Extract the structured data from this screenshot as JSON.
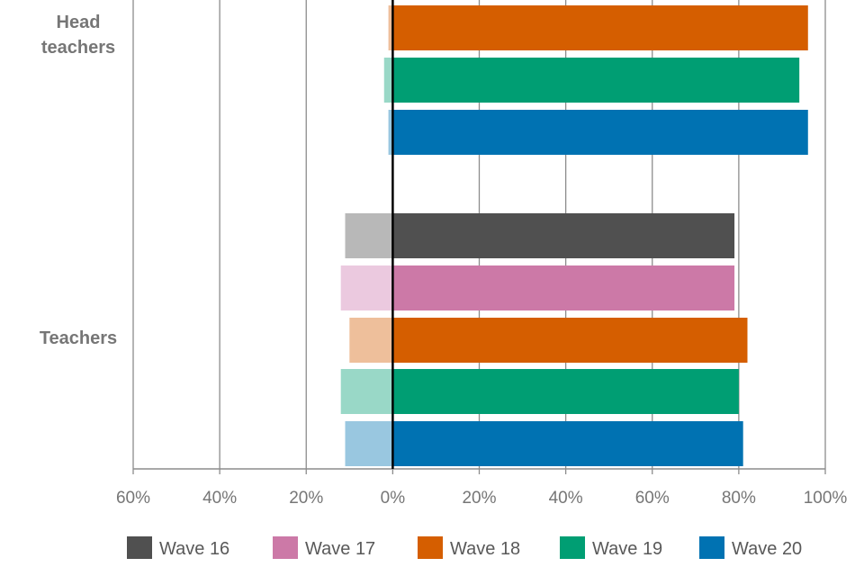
{
  "chart_data": {
    "type": "bar",
    "orientation": "horizontal-diverging",
    "x_ticks": [
      "60%",
      "40%",
      "20%",
      "0%",
      "20%",
      "40%",
      "60%",
      "80%",
      "100%"
    ],
    "xlim": [
      -60,
      100
    ],
    "grid": true,
    "legend_position": "bottom",
    "series": [
      {
        "name": "Wave 16",
        "color": "#505050",
        "light_color": "#b8b8b8"
      },
      {
        "name": "Wave 17",
        "color": "#cc79a7",
        "light_color": "#ebc9df"
      },
      {
        "name": "Wave 18",
        "color": "#d55e00",
        "light_color": "#eebf9b"
      },
      {
        "name": "Wave 19",
        "color": "#009e73",
        "light_color": "#99d8c7"
      },
      {
        "name": "Wave 20",
        "color": "#0072b2",
        "light_color": "#99c7e0"
      }
    ],
    "groups": [
      {
        "label_lines": [
          "Head",
          "teachers"
        ],
        "bars": [
          {
            "series": "Wave 18",
            "negative": 1,
            "positive": 96
          },
          {
            "series": "Wave 19",
            "negative": 2,
            "positive": 94
          },
          {
            "series": "Wave 20",
            "negative": 1,
            "positive": 96
          }
        ]
      },
      {
        "label_lines": [
          "Teachers"
        ],
        "bars": [
          {
            "series": "Wave 16",
            "negative": 11,
            "positive": 79
          },
          {
            "series": "Wave 17",
            "negative": 12,
            "positive": 79
          },
          {
            "series": "Wave 18",
            "negative": 10,
            "positive": 82
          },
          {
            "series": "Wave 19",
            "negative": 12,
            "positive": 80
          },
          {
            "series": "Wave 20",
            "negative": 11,
            "positive": 81
          }
        ]
      }
    ]
  }
}
